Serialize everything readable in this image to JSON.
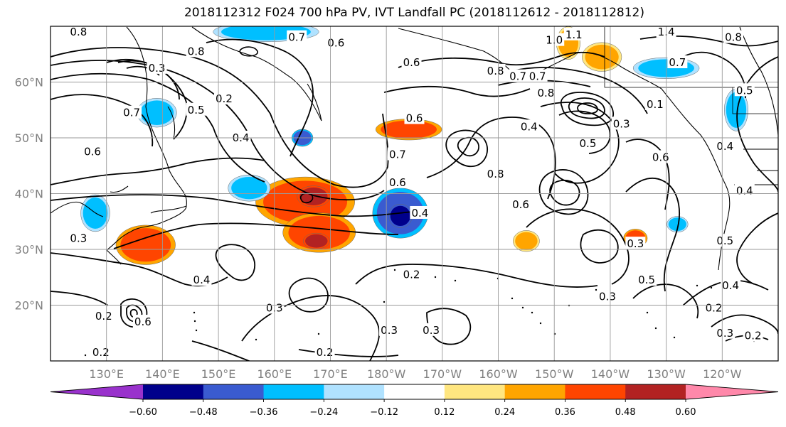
{
  "figure": {
    "title": "2018112312 F024 700 hPa PV, IVT Landfall PC (2018112612 - 2018112812)"
  },
  "map": {
    "projection": "cylindrical",
    "lon_range": [
      120,
      250
    ],
    "lat_range": [
      10,
      70
    ],
    "lon_ticks": [
      {
        "lon": 130,
        "label": "130°E"
      },
      {
        "lon": 140,
        "label": "140°E"
      },
      {
        "lon": 150,
        "label": "150°E"
      },
      {
        "lon": 160,
        "label": "160°E"
      },
      {
        "lon": 170,
        "label": "170°E"
      },
      {
        "lon": 180,
        "label": "180°W"
      },
      {
        "lon": 190,
        "label": "170°W"
      },
      {
        "lon": 200,
        "label": "160°W"
      },
      {
        "lon": 210,
        "label": "150°W"
      },
      {
        "lon": 220,
        "label": "140°W"
      },
      {
        "lon": 230,
        "label": "130°W"
      },
      {
        "lon": 240,
        "label": "120°W"
      }
    ],
    "lat_ticks": [
      {
        "lat": 20,
        "label": "20°N"
      },
      {
        "lat": 30,
        "label": "30°N"
      },
      {
        "lat": 40,
        "label": "40°N"
      },
      {
        "lat": 50,
        "label": "50°N"
      },
      {
        "lat": 60,
        "label": "60°N"
      }
    ],
    "gridlines": true,
    "contour_labels": [
      {
        "lon": 125,
        "lat": 69.0,
        "text": "0.8"
      },
      {
        "lon": 139,
        "lat": 62.5,
        "text": "0.3"
      },
      {
        "lon": 134.5,
        "lat": 54.5,
        "text": "0.7"
      },
      {
        "lon": 146,
        "lat": 55.0,
        "text": "0.5"
      },
      {
        "lon": 151,
        "lat": 57.0,
        "text": "0.2"
      },
      {
        "lon": 146,
        "lat": 65.5,
        "text": "0.8"
      },
      {
        "lon": 127.5,
        "lat": 47.5,
        "text": "0.6"
      },
      {
        "lon": 154,
        "lat": 50.0,
        "text": "0.4"
      },
      {
        "lon": 164,
        "lat": 68.0,
        "text": "0.7"
      },
      {
        "lon": 171,
        "lat": 67.0,
        "text": "0.6"
      },
      {
        "lon": 184.5,
        "lat": 63.5,
        "text": "0.6"
      },
      {
        "lon": 199.5,
        "lat": 62.0,
        "text": "0.8"
      },
      {
        "lon": 203.5,
        "lat": 61.0,
        "text": "0.7"
      },
      {
        "lon": 185,
        "lat": 53.5,
        "text": "0.6"
      },
      {
        "lon": 182,
        "lat": 47.0,
        "text": "0.7"
      },
      {
        "lon": 207,
        "lat": 61.0,
        "text": "0.7"
      },
      {
        "lon": 208.5,
        "lat": 58.0,
        "text": "0.8"
      },
      {
        "lon": 210,
        "lat": 67.5,
        "text": "1.0"
      },
      {
        "lon": 213.5,
        "lat": 68.5,
        "text": "1.1"
      },
      {
        "lon": 230,
        "lat": 69.0,
        "text": "1.4"
      },
      {
        "lon": 232,
        "lat": 63.5,
        "text": "0.7"
      },
      {
        "lon": 242,
        "lat": 68.0,
        "text": "0.8"
      },
      {
        "lon": 228,
        "lat": 56.0,
        "text": "0.1"
      },
      {
        "lon": 222,
        "lat": 52.5,
        "text": "0.3"
      },
      {
        "lon": 205.5,
        "lat": 52.0,
        "text": "0.4"
      },
      {
        "lon": 216,
        "lat": 49.0,
        "text": "0.5"
      },
      {
        "lon": 199.5,
        "lat": 43.5,
        "text": "0.8"
      },
      {
        "lon": 204,
        "lat": 38.0,
        "text": "0.6"
      },
      {
        "lon": 229,
        "lat": 46.5,
        "text": "0.6"
      },
      {
        "lon": 240.5,
        "lat": 48.5,
        "text": "0.4"
      },
      {
        "lon": 182,
        "lat": 42.0,
        "text": "0.6"
      },
      {
        "lon": 186,
        "lat": 36.5,
        "text": "0.4"
      },
      {
        "lon": 125,
        "lat": 32.0,
        "text": "0.3"
      },
      {
        "lon": 147,
        "lat": 24.5,
        "text": "0.4"
      },
      {
        "lon": 184.5,
        "lat": 25.5,
        "text": "0.2"
      },
      {
        "lon": 160,
        "lat": 19.5,
        "text": "0.3"
      },
      {
        "lon": 129.5,
        "lat": 18.0,
        "text": "0.2"
      },
      {
        "lon": 136.5,
        "lat": 17.0,
        "text": "0.6"
      },
      {
        "lon": 129,
        "lat": 11.5,
        "text": "0.2"
      },
      {
        "lon": 169,
        "lat": 11.5,
        "text": "0.2"
      },
      {
        "lon": 180.5,
        "lat": 15.5,
        "text": "0.3"
      },
      {
        "lon": 188,
        "lat": 15.5,
        "text": "0.3"
      },
      {
        "lon": 219.5,
        "lat": 21.5,
        "text": "0.3"
      },
      {
        "lon": 226.5,
        "lat": 24.5,
        "text": "0.5"
      },
      {
        "lon": 224.5,
        "lat": 31.0,
        "text": "0.3"
      },
      {
        "lon": 240.5,
        "lat": 31.5,
        "text": "0.5"
      },
      {
        "lon": 241.5,
        "lat": 23.5,
        "text": "0.4"
      },
      {
        "lon": 238.5,
        "lat": 19.5,
        "text": "0.2"
      },
      {
        "lon": 240.5,
        "lat": 15.0,
        "text": "0.3"
      },
      {
        "lon": 245.5,
        "lat": 14.5,
        "text": "0.2"
      },
      {
        "lon": 244,
        "lat": 40.5,
        "text": "0.4"
      },
      {
        "lon": 244,
        "lat": 58.5,
        "text": "0.5"
      }
    ]
  },
  "shading": {
    "variable": "IVT Landfall PC",
    "period": "2018112612 - 2018112812",
    "levels": [
      -0.6,
      -0.48,
      -0.36,
      -0.24,
      -0.12,
      0.12,
      0.24,
      0.36,
      0.48,
      0.6
    ],
    "colors": [
      "#9932cc",
      "#00008b",
      "#3a5bd0",
      "#00bfff",
      "#b0e2ff",
      "#ffffff",
      "#ffe680",
      "#ffa500",
      "#ff4500",
      "#b22222",
      "#ff88aa"
    ],
    "tick_labels": [
      "−0.60",
      "−0.48",
      "−0.36",
      "−0.24",
      "−0.12",
      "0.12",
      "0.24",
      "0.36",
      "0.48",
      "0.60"
    ],
    "blobs": [
      {
        "lon": 165.5,
        "lat": 38.5,
        "rx": 7.5,
        "ry": 3.8,
        "value": 0.4
      },
      {
        "lon": 168,
        "lat": 33,
        "rx": 5.5,
        "ry": 3,
        "value": 0.45
      },
      {
        "lon": 167,
        "lat": 39.5,
        "rx": 2.5,
        "ry": 1.6,
        "value": 0.52
      },
      {
        "lon": 167.5,
        "lat": 31.5,
        "rx": 2,
        "ry": 1.2,
        "value": 0.5
      },
      {
        "lon": 182.5,
        "lat": 36.5,
        "rx": 4.2,
        "ry": 3.8,
        "value": -0.45
      },
      {
        "lon": 182.5,
        "lat": 36,
        "rx": 1.8,
        "ry": 1.8,
        "value": -0.55
      },
      {
        "lon": 137,
        "lat": 30.8,
        "rx": 4.5,
        "ry": 3,
        "value": 0.4
      },
      {
        "lon": 184,
        "lat": 51.5,
        "rx": 5,
        "ry": 1.6,
        "value": 0.42
      },
      {
        "lon": 158.5,
        "lat": 69,
        "rx": 8,
        "ry": 1.5,
        "value": -0.3
      },
      {
        "lon": 212.5,
        "lat": 67,
        "rx": 1.8,
        "ry": 2.5,
        "value": 0.3
      },
      {
        "lon": 218.5,
        "lat": 64.5,
        "rx": 3,
        "ry": 2.2,
        "value": 0.3
      },
      {
        "lon": 230,
        "lat": 62.5,
        "rx": 5,
        "ry": 1.6,
        "value": -0.3
      },
      {
        "lon": 128,
        "lat": 36.5,
        "rx": 2.2,
        "ry": 2.8,
        "value": -0.28
      },
      {
        "lon": 155.5,
        "lat": 41,
        "rx": 3.2,
        "ry": 2,
        "value": -0.3
      },
      {
        "lon": 139,
        "lat": 54.5,
        "rx": 3,
        "ry": 2.2,
        "value": -0.28
      },
      {
        "lon": 165,
        "lat": 50,
        "rx": 1.6,
        "ry": 1.3,
        "value": -0.4
      },
      {
        "lon": 205,
        "lat": 31.5,
        "rx": 2,
        "ry": 1.6,
        "value": 0.28
      },
      {
        "lon": 224.5,
        "lat": 32,
        "rx": 1.8,
        "ry": 1.4,
        "value": 0.38
      },
      {
        "lon": 242.5,
        "lat": 55,
        "rx": 1.8,
        "ry": 3.2,
        "value": -0.28
      },
      {
        "lon": 232,
        "lat": 34.5,
        "rx": 1.6,
        "ry": 1.2,
        "value": -0.3
      }
    ]
  }
}
